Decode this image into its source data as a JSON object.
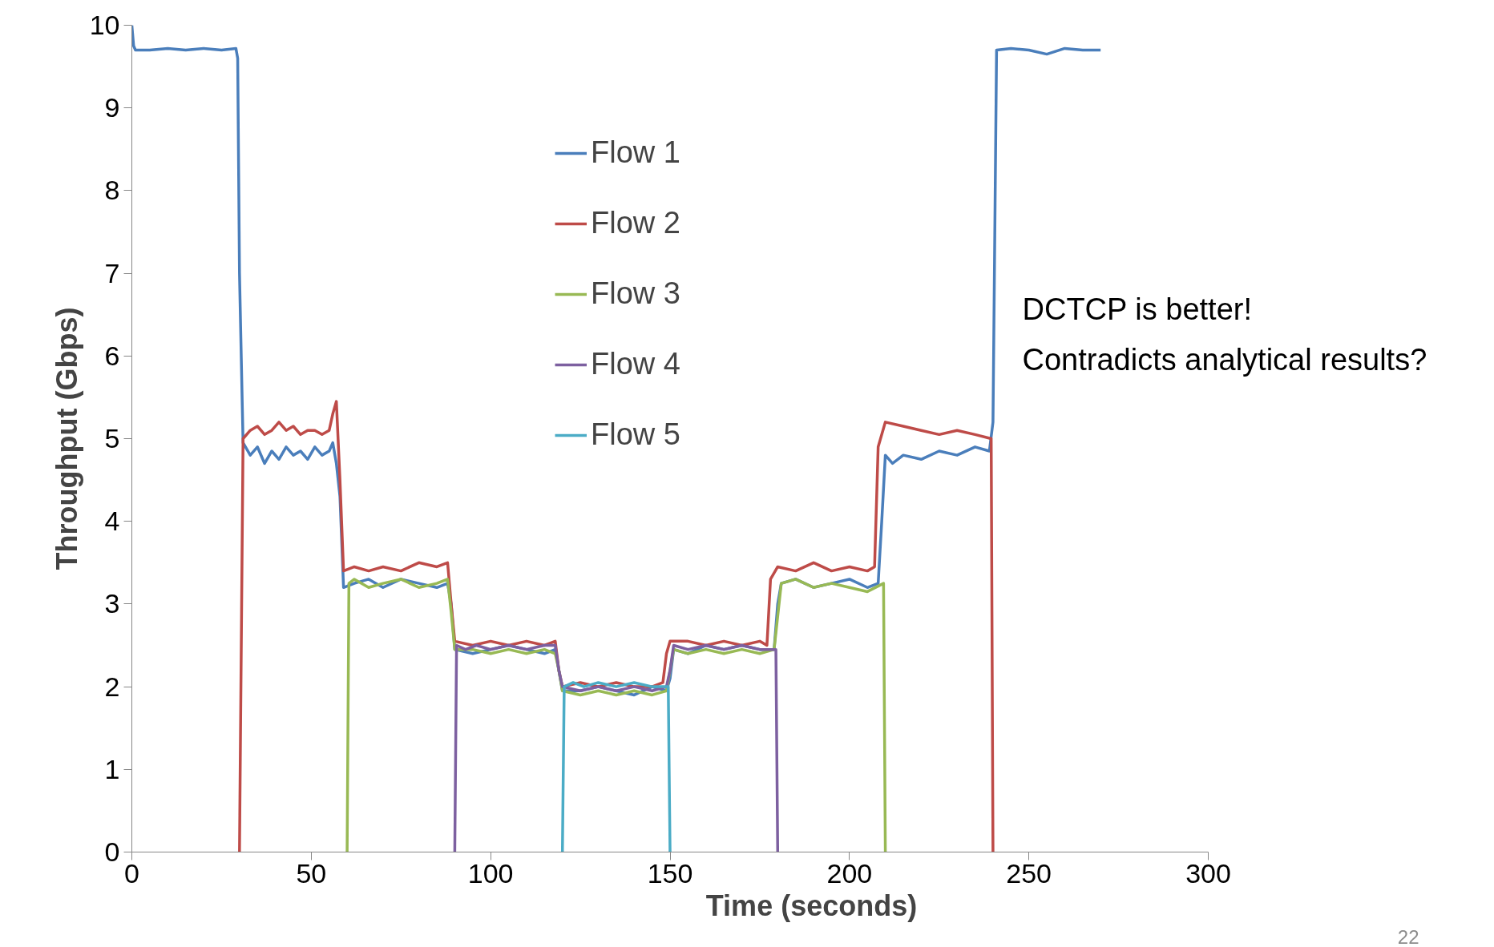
{
  "chart_data": {
    "type": "line",
    "xlabel": "Time (seconds)",
    "ylabel": "Throughput (Gbps)",
    "xlim": [
      0,
      300
    ],
    "xticks": [
      0,
      50,
      100,
      150,
      200,
      250,
      300
    ],
    "ylim": [
      0,
      10
    ],
    "yticks": [
      0,
      1,
      2,
      3,
      4,
      5,
      6,
      7,
      8,
      9,
      10
    ],
    "grid": false,
    "legend": "top",
    "marker": "none",
    "line_style": "solid",
    "annotations": [
      "DCTCP is better!\nContradicts analytical results?",
      "22"
    ],
    "series": [
      {
        "name": "Flow 1",
        "color": "#4a7ebb",
        "x": [
          0,
          0.5,
          1,
          5,
          10,
          15,
          20,
          25,
          29,
          29.5,
          30,
          31,
          33,
          35,
          37,
          39,
          41,
          43,
          45,
          47,
          49,
          51,
          53,
          55,
          56,
          57,
          58,
          59,
          62,
          66,
          70,
          75,
          80,
          85,
          88,
          89,
          90,
          95,
          100,
          105,
          110,
          115,
          118,
          119,
          120,
          125,
          130,
          135,
          140,
          145,
          149,
          150,
          151,
          155,
          160,
          165,
          170,
          175,
          179,
          180,
          181,
          185,
          190,
          195,
          200,
          205,
          208,
          209,
          210,
          212,
          215,
          220,
          225,
          230,
          235,
          239,
          240,
          241,
          245,
          250,
          255,
          260,
          265,
          270
        ],
        "values": [
          10,
          9.75,
          9.7,
          9.7,
          9.72,
          9.7,
          9.72,
          9.7,
          9.72,
          9.6,
          7,
          4.95,
          4.8,
          4.9,
          4.7,
          4.85,
          4.75,
          4.9,
          4.8,
          4.85,
          4.75,
          4.9,
          4.8,
          4.85,
          4.95,
          4.7,
          4.3,
          3.2,
          3.25,
          3.3,
          3.2,
          3.3,
          3.25,
          3.2,
          3.25,
          3,
          2.45,
          2.4,
          2.45,
          2.5,
          2.45,
          2.4,
          2.45,
          2.2,
          1.95,
          1.95,
          2.0,
          1.95,
          1.9,
          2.0,
          1.95,
          2.1,
          2.45,
          2.4,
          2.5,
          2.45,
          2.5,
          2.45,
          2.45,
          3.0,
          3.25,
          3.3,
          3.2,
          3.25,
          3.3,
          3.2,
          3.25,
          4.0,
          4.8,
          4.7,
          4.8,
          4.75,
          4.85,
          4.8,
          4.9,
          4.85,
          5.2,
          9.7,
          9.72,
          9.7,
          9.65,
          9.72,
          9.7,
          9.7
        ]
      },
      {
        "name": "Flow 2",
        "color": "#be4b48",
        "x": [
          30,
          31,
          33,
          35,
          37,
          39,
          41,
          43,
          45,
          47,
          49,
          51,
          53,
          55,
          56,
          57,
          58,
          59,
          62,
          66,
          70,
          75,
          80,
          85,
          88,
          89,
          90,
          95,
          100,
          105,
          110,
          115,
          118,
          119,
          120,
          125,
          130,
          135,
          140,
          145,
          148,
          149,
          150,
          155,
          160,
          165,
          170,
          175,
          177,
          178,
          180,
          185,
          190,
          195,
          200,
          205,
          207,
          208,
          210,
          215,
          220,
          225,
          230,
          235,
          239.5,
          240
        ],
        "values": [
          0,
          5.0,
          5.1,
          5.15,
          5.05,
          5.1,
          5.2,
          5.1,
          5.15,
          5.05,
          5.1,
          5.1,
          5.05,
          5.1,
          5.3,
          5.45,
          4.5,
          3.4,
          3.45,
          3.4,
          3.45,
          3.4,
          3.5,
          3.45,
          3.5,
          3.0,
          2.55,
          2.5,
          2.55,
          2.5,
          2.55,
          2.5,
          2.55,
          2.2,
          2.0,
          2.05,
          2.0,
          2.05,
          2.0,
          2.0,
          2.05,
          2.4,
          2.55,
          2.55,
          2.5,
          2.55,
          2.5,
          2.55,
          2.5,
          3.3,
          3.45,
          3.4,
          3.5,
          3.4,
          3.45,
          3.4,
          3.45,
          4.9,
          5.2,
          5.15,
          5.1,
          5.05,
          5.1,
          5.05,
          5.0,
          0
        ]
      },
      {
        "name": "Flow 3",
        "color": "#98b954",
        "x": [
          60,
          60.5,
          62,
          66,
          70,
          75,
          80,
          85,
          88,
          89,
          90,
          95,
          100,
          105,
          110,
          115,
          118,
          119,
          120,
          125,
          130,
          135,
          140,
          145,
          149,
          150,
          151,
          155,
          160,
          165,
          170,
          175,
          179,
          181,
          185,
          190,
          195,
          200,
          205,
          209.5,
          210
        ],
        "values": [
          0,
          3.25,
          3.3,
          3.2,
          3.25,
          3.3,
          3.2,
          3.25,
          3.3,
          2.9,
          2.45,
          2.45,
          2.4,
          2.45,
          2.4,
          2.45,
          2.4,
          2.2,
          1.95,
          1.9,
          1.95,
          1.9,
          1.95,
          1.9,
          1.95,
          2.2,
          2.45,
          2.4,
          2.45,
          2.4,
          2.45,
          2.4,
          2.45,
          3.25,
          3.3,
          3.2,
          3.25,
          3.2,
          3.15,
          3.25,
          0
        ]
      },
      {
        "name": "Flow 4",
        "color": "#7d60a0",
        "x": [
          90,
          90.5,
          93,
          96,
          100,
          105,
          110,
          115,
          118,
          119,
          120,
          125,
          130,
          135,
          140,
          145,
          149,
          150,
          151,
          155,
          160,
          165,
          170,
          175,
          179.5,
          180
        ],
        "values": [
          0,
          2.5,
          2.45,
          2.5,
          2.45,
          2.5,
          2.45,
          2.5,
          2.5,
          2.2,
          2.0,
          1.95,
          2.0,
          1.95,
          2.0,
          1.95,
          2.0,
          2.2,
          2.5,
          2.45,
          2.5,
          2.45,
          2.5,
          2.45,
          2.45,
          0
        ]
      },
      {
        "name": "Flow 5",
        "color": "#4bacc6",
        "x": [
          120,
          120.5,
          123,
          126,
          130,
          135,
          140,
          145,
          149.5,
          150
        ],
        "values": [
          0,
          2.0,
          2.05,
          2.0,
          2.05,
          2.0,
          2.05,
          2.0,
          2.0,
          0
        ]
      }
    ]
  }
}
